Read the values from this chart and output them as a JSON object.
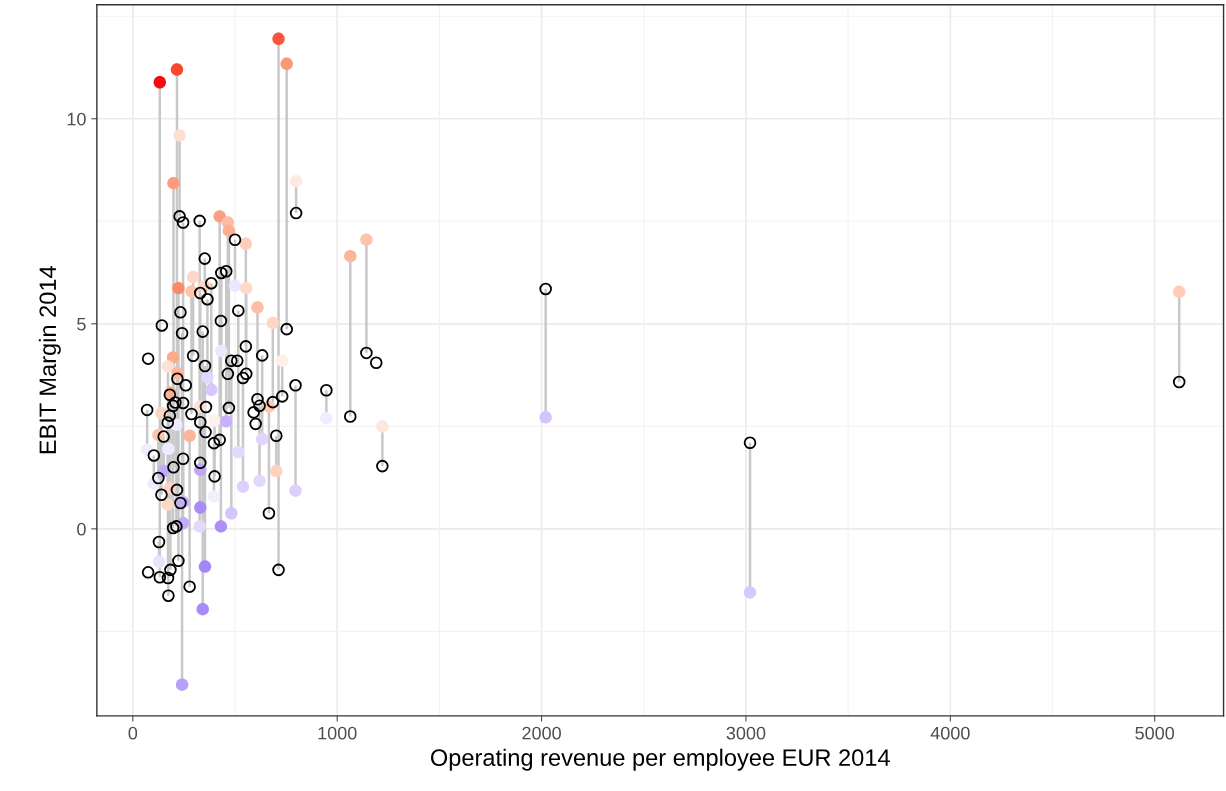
{
  "chart_data": {
    "type": "scatter",
    "xlabel": "Operating revenue per employee EUR 2014",
    "ylabel": "EBIT Margin 2014",
    "x": [
      5120,
      3020,
      2020,
      1221,
      1191,
      1143,
      1064,
      947,
      799,
      753,
      713,
      796,
      731,
      702,
      685,
      666,
      633,
      620,
      610,
      132,
      216,
      229,
      199,
      425,
      465,
      470,
      553,
      295,
      223,
      287,
      352,
      500,
      516,
      555,
      433,
      431,
      197,
      172,
      218,
      213,
      365,
      384,
      184,
      330,
      330,
      330,
      327,
      140,
      400,
      397,
      457,
      125,
      278,
      70,
      174,
      171,
      181,
      181,
      539,
      151,
      103,
      246,
      246,
      246,
      241,
      482,
      128,
      353,
      342,
      601,
      233,
      142,
      511,
      259,
      208,
      75,
      75,
      233,
      591,
      358,
      356,
      197
    ],
    "series": [
      {
        "marker": "circle",
        "color": "#000000",
        "values": [
          3.58,
          2.1,
          5.85,
          1.53,
          4.05,
          4.29,
          2.74,
          3.38,
          7.7,
          4.87,
          -1.0,
          3.5,
          3.23,
          2.27,
          3.09,
          0.38,
          4.23,
          3.0,
          3.16,
          -1.18,
          0.95,
          7.62,
          1.5,
          2.17,
          3.78,
          2.95,
          4.45,
          4.22,
          -0.78,
          2.8,
          6.59,
          7.05,
          5.32,
          3.78,
          6.24,
          5.07,
          0.02,
          -1.2,
          3.66,
          0.06,
          5.6,
          5.99,
          -1.0,
          5.75,
          2.6,
          1.61,
          7.51,
          0.83,
          1.28,
          2.09,
          6.28,
          1.24,
          -1.41,
          2.9,
          -1.63,
          2.59,
          3.27,
          2.76,
          3.68,
          2.25,
          1.79,
          7.47,
          1.71,
          3.07,
          4.77,
          4.1,
          -0.32,
          3.97,
          4.81,
          2.56,
          5.28,
          4.96,
          4.1,
          3.5,
          3.08,
          4.15,
          -1.06,
          0.63,
          2.84,
          2.97,
          2.36,
          3.0
        ]
      },
      {
        "marker": "circle",
        "errors": [
          [
            3.58,
            5.78
          ],
          [
            -1.55,
            2.1
          ],
          [
            2.72,
            5.85
          ],
          [
            1.53,
            2.5
          ],
          null,
          [
            4.29,
            7.05
          ],
          [
            2.74,
            6.65
          ],
          [
            2.7,
            3.38
          ],
          [
            7.7,
            8.48
          ],
          [
            4.87,
            11.34
          ],
          [
            -1.0,
            11.95
          ],
          [
            0.93,
            3.5
          ],
          [
            3.23,
            4.1
          ],
          [
            1.41,
            2.27
          ],
          [
            3.09,
            5.02
          ],
          [
            0.38,
            2.98
          ],
          [
            2.19,
            4.23
          ],
          [
            1.17,
            3.0
          ],
          [
            3.16,
            5.4
          ],
          [
            -1.18,
            10.89
          ],
          [
            0.95,
            11.2
          ],
          [
            7.62,
            9.59
          ],
          [
            1.5,
            8.43
          ],
          [
            2.17,
            7.62
          ],
          [
            3.78,
            7.47
          ],
          [
            2.95,
            7.27
          ],
          [
            4.45,
            6.95
          ],
          [
            4.22,
            6.14
          ],
          [
            -0.78,
            5.87
          ],
          [
            2.8,
            5.79
          ],
          [
            5.91,
            6.59
          ],
          [
            5.93,
            7.05
          ],
          [
            1.87,
            5.32
          ],
          [
            3.78,
            5.87
          ],
          [
            4.34,
            6.24
          ],
          [
            0.06,
            5.07
          ],
          [
            0.02,
            4.18
          ],
          [
            -1.2,
            3.96
          ],
          [
            3.66,
            3.8
          ],
          [
            0.06,
            2.54
          ],
          [
            3.69,
            5.6
          ],
          [
            3.39,
            5.99
          ],
          [
            -1.0,
            3.32
          ],
          [
            2.98,
            5.75
          ],
          [
            0.52,
            2.6
          ],
          [
            1.44,
            1.61
          ],
          [
            0.06,
            7.51
          ],
          [
            0.83,
            2.82
          ],
          [
            1.28,
            2.64
          ],
          [
            0.79,
            2.09
          ],
          [
            2.62,
            6.28
          ],
          [
            1.24,
            2.29
          ],
          [
            -1.41,
            2.27
          ],
          [
            1.93,
            2.9
          ],
          [
            -1.63,
            1.95
          ],
          [
            0.59,
            2.59
          ],
          null,
          null,
          [
            1.03,
            3.68
          ],
          [
            1.41,
            2.25
          ],
          [
            1.11,
            1.79
          ],
          [
            0.65,
            7.47
          ],
          [
            0.14,
            1.71
          ],
          null,
          [
            -3.8,
            4.77
          ],
          [
            0.38,
            4.1
          ],
          [
            -0.8,
            -0.32
          ],
          [
            -0.92,
            3.97
          ],
          [
            -1.96,
            4.81
          ],
          null,
          null,
          null,
          null,
          null,
          null,
          null,
          null,
          null,
          null,
          null,
          null,
          null
        ],
        "values": [
          5.78,
          -1.55,
          2.72,
          2.5,
          null,
          7.05,
          6.65,
          2.7,
          8.48,
          11.34,
          11.95,
          0.93,
          4.1,
          1.41,
          5.02,
          2.98,
          2.19,
          1.17,
          5.4,
          10.89,
          11.2,
          9.59,
          8.43,
          7.62,
          7.47,
          7.27,
          6.95,
          6.14,
          5.87,
          5.79,
          5.91,
          5.93,
          1.87,
          5.87,
          4.34,
          0.06,
          4.18,
          3.96,
          3.8,
          2.54,
          3.69,
          3.39,
          3.32,
          2.98,
          0.52,
          1.44,
          0.06,
          2.82,
          2.64,
          0.79,
          2.62,
          2.29,
          2.27,
          1.93,
          1.95,
          0.59,
          0.99,
          null,
          1.03,
          1.41,
          1.11,
          0.65,
          0.14,
          null,
          -3.8,
          0.38,
          -0.8,
          -0.92,
          -1.96,
          null,
          null,
          null,
          null,
          null,
          null,
          null,
          null,
          null,
          null,
          null,
          null,
          null
        ],
        "colors": [
          "#fdcdb9",
          "#d7c8fd",
          "#d4c3fc",
          "#fee8de",
          null,
          "#fdc4ad",
          "#fcb69b",
          "#f0ebfe",
          "#fdebe3",
          "#fb9877",
          "#f9553a",
          "#dcd0fd",
          "#feefe9",
          "#fdd2bf",
          "#fdd6c4",
          "#fdcab4",
          "#e0d5fd",
          "#e2d7fd",
          "#fdbda5",
          "#f50d0d",
          "#f8492f",
          "#fde0d4",
          "#fc9c7e",
          "#fc9e82",
          "#fdbca5",
          "#fcb093",
          "#fdcebb",
          "#fdd7c7",
          "#fb8a6a",
          "#fdc5ae",
          "#fdd6c5",
          "#ece6fe",
          "#e3d9fd",
          "#fdd9c9",
          "#ede7fe",
          "#ac8ff9",
          "#fca98c",
          "#fde1d5",
          "#fcb79e",
          "#efeafe",
          "#e2d8fd",
          "#d6c6fc",
          "#fcb195",
          "#fde0d3",
          "#a98cf9",
          "#c0a6fb",
          "#e3d9fd",
          "#fdd5c4",
          "#fef0ea",
          "#f2eefe",
          "#c9b2fb",
          "#fdc4ad",
          "#fcb598",
          "#f1ecfe",
          "#efebfe",
          "#fdd8c7",
          "#fdd3c1",
          null,
          "#ddd0fd",
          "#c3abfb",
          "#efeafe",
          "#c5aefb",
          "#c3acfb",
          null,
          "#b99ffa",
          "#d5c5fc",
          "#e9e2fe",
          "#a585f8",
          "#a88af9",
          null,
          null,
          null,
          null,
          null,
          null,
          null,
          null,
          null,
          null,
          null,
          null,
          null
        ]
      }
    ],
    "xlim": [
      -176,
      5337
    ],
    "ylim": [
      -4.56,
      12.78
    ],
    "xticks": [
      0,
      1000,
      2000,
      3000,
      4000,
      5000
    ],
    "yticks": [
      0,
      5,
      10
    ],
    "grid": true
  }
}
